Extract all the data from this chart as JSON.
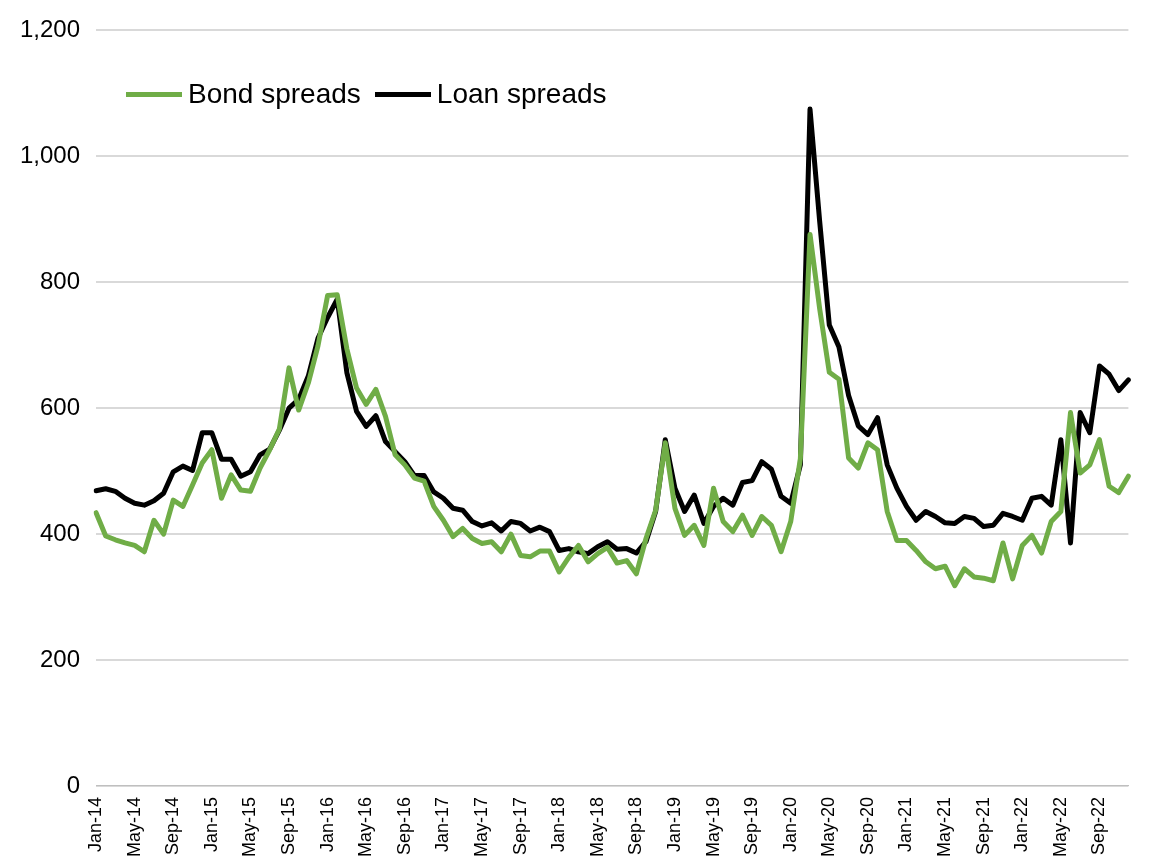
{
  "chart_data": {
    "type": "line",
    "categories": [
      "Jan-14",
      null,
      null,
      null,
      "May-14",
      null,
      null,
      null,
      "Sep-14",
      null,
      null,
      null,
      "Jan-15",
      null,
      null,
      null,
      "May-15",
      null,
      null,
      null,
      "Sep-15",
      null,
      null,
      null,
      "Jan-16",
      null,
      null,
      null,
      "May-16",
      null,
      null,
      null,
      "Sep-16",
      null,
      null,
      null,
      "Jan-17",
      null,
      null,
      null,
      "May-17",
      null,
      null,
      null,
      "Sep-17",
      null,
      null,
      null,
      "Jan-18",
      null,
      null,
      null,
      "May-18",
      null,
      null,
      null,
      "Sep-18",
      null,
      null,
      null,
      "Jan-19",
      null,
      null,
      null,
      "May-19",
      null,
      null,
      null,
      "Sep-19",
      null,
      null,
      null,
      "Jan-20",
      null,
      null,
      null,
      "May-20",
      null,
      null,
      null,
      "Sep-20",
      null,
      null,
      null,
      "Jan-21",
      null,
      null,
      null,
      "May-21",
      null,
      null,
      null,
      "Sep-21",
      null,
      null,
      null,
      "Jan-22",
      null,
      null,
      null,
      "May-22",
      null,
      null,
      null,
      "Sep-22",
      null,
      null,
      null
    ],
    "series": [
      {
        "name": "Bond spreads",
        "color": "#70ad47",
        "values": [
          434,
          397,
          391,
          386,
          382,
          372,
          422,
          400,
          454,
          444,
          478,
          513,
          534,
          457,
          494,
          470,
          468,
          505,
          534,
          567,
          664,
          597,
          640,
          699,
          779,
          780,
          694,
          632,
          606,
          630,
          587,
          526,
          510,
          489,
          484,
          444,
          422,
          396,
          409,
          393,
          385,
          388,
          372,
          400,
          366,
          364,
          373,
          373,
          340,
          363,
          382,
          356,
          369,
          379,
          354,
          358,
          337,
          393,
          438,
          545,
          441,
          398,
          414,
          382,
          473,
          420,
          404,
          430,
          398,
          428,
          414,
          372,
          420,
          520,
          876,
          758,
          657,
          646,
          521,
          505,
          545,
          534,
          436,
          390,
          390,
          374,
          356,
          345,
          349,
          318,
          345,
          332,
          330,
          326,
          386,
          329,
          382,
          398,
          370,
          420,
          436,
          593,
          497,
          510,
          550,
          476,
          466,
          492
        ]
      },
      {
        "name": "Loan spreads",
        "color": "#000000",
        "values": [
          469,
          472,
          468,
          457,
          449,
          446,
          453,
          465,
          499,
          508,
          501,
          561,
          561,
          519,
          519,
          492,
          499,
          526,
          535,
          565,
          600,
          614,
          651,
          711,
          744,
          773,
          656,
          595,
          571,
          588,
          547,
          531,
          515,
          493,
          493,
          467,
          457,
          441,
          438,
          420,
          413,
          418,
          405,
          420,
          417,
          405,
          411,
          404,
          374,
          377,
          372,
          369,
          380,
          388,
          376,
          377,
          370,
          388,
          436,
          550,
          473,
          436,
          462,
          417,
          444,
          457,
          446,
          482,
          485,
          515,
          503,
          460,
          449,
          510,
          1075,
          897,
          732,
          697,
          620,
          572,
          558,
          585,
          510,
          473,
          444,
          422,
          436,
          428,
          418,
          417,
          428,
          425,
          412,
          414,
          433,
          428,
          422,
          457,
          460,
          446,
          550,
          386,
          593,
          561,
          667,
          654,
          628,
          645
        ]
      }
    ],
    "ylim": [
      0,
      1200
    ],
    "yticks": [
      0,
      200,
      400,
      600,
      800,
      {
        "value": 1000,
        "label": "1,000"
      },
      {
        "value": 1200,
        "label": "1,200"
      }
    ],
    "grid": "y",
    "legend": "top left",
    "marker": "none",
    "line_style": "solid"
  }
}
